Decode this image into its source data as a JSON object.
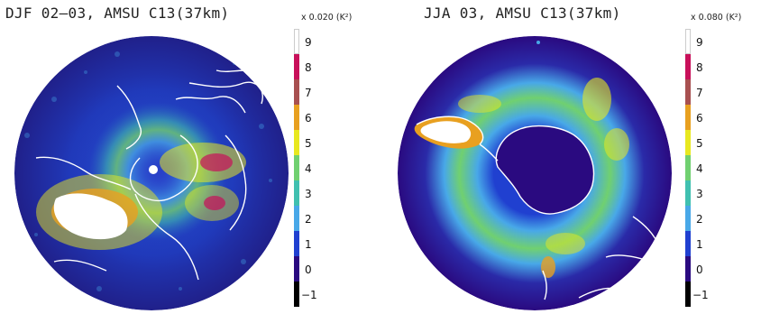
{
  "panels": [
    {
      "title": "DJF 02–03, AMSU C13(37km)",
      "scale_label": "x 0.020 (K²)",
      "hemisphere": "north"
    },
    {
      "title": "JJA 03, AMSU C13(37km)",
      "scale_label": "x 0.080 (K²)",
      "hemisphere": "south"
    }
  ],
  "colorbar": {
    "ticks": [
      "9",
      "8",
      "7",
      "6",
      "5",
      "4",
      "3",
      "2",
      "1",
      "0",
      "−1"
    ],
    "colors": [
      "#ffffff",
      "#c8105a",
      "#a85050",
      "#e8a020",
      "#e8e820",
      "#70d070",
      "#40c0b0",
      "#48a8e8",
      "#2040d0",
      "#2a0a80",
      "#000000"
    ]
  }
}
